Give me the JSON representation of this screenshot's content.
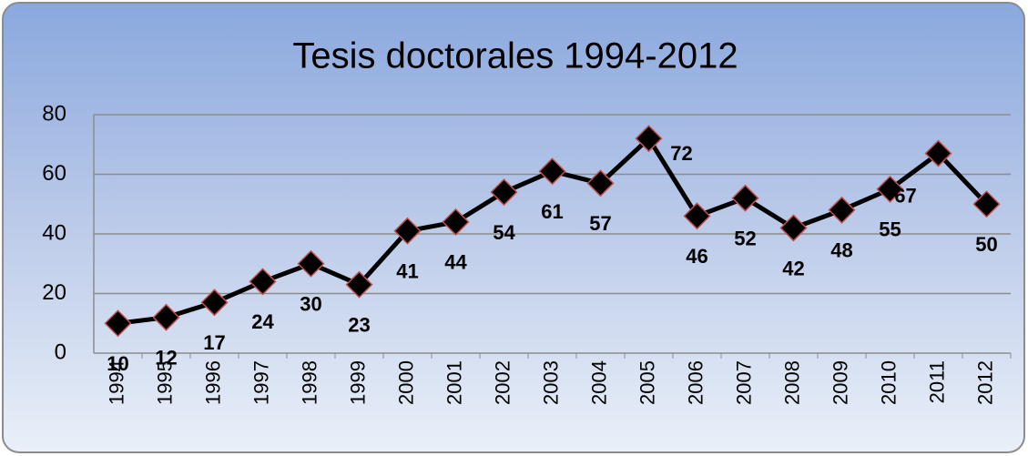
{
  "chart_data": {
    "type": "line",
    "title": "Tesis doctorales 1994-2012",
    "categories": [
      "1994",
      "1995",
      "1996",
      "1997",
      "1998",
      "1999",
      "2000",
      "2001",
      "2002",
      "2003",
      "2004",
      "2005",
      "2006",
      "2007",
      "2008",
      "2009",
      "2010",
      "2011",
      "2012"
    ],
    "values": [
      10,
      12,
      17,
      24,
      30,
      23,
      41,
      44,
      54,
      61,
      57,
      72,
      46,
      52,
      42,
      48,
      55,
      67,
      50
    ],
    "color": "#000000",
    "marker_edge_color": "#c0504d",
    "ylim": [
      0,
      80
    ],
    "yticks": [
      0,
      20,
      40,
      60,
      80
    ],
    "grid": true
  }
}
